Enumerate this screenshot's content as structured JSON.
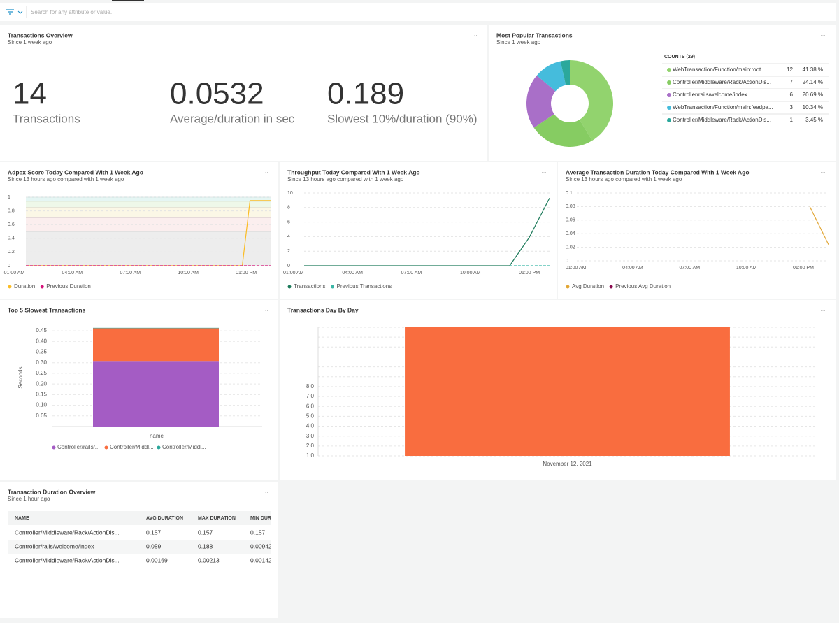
{
  "search_placeholder": "Search for any attribute or value.",
  "menu_label": "...",
  "overview": {
    "title": "Transactions Overview",
    "subtitle": "Since 1 week ago",
    "stats": [
      {
        "value": 14,
        "label": "Transactions"
      },
      {
        "value": 0.0532,
        "label": "Average/duration in sec"
      },
      {
        "value": 0.189,
        "label": "Slowest 10%/duration (90%)"
      }
    ]
  },
  "popular": {
    "title": "Most Popular Transactions",
    "subtitle": "Since 1 week ago",
    "chart_data": {
      "type": "pie",
      "legend_title": "COUNTS (29)",
      "categories": [
        "WebTransaction/Function/main:root",
        "Controller/Middleware/Rack/ActionDis...",
        "Controller/rails/welcome/index",
        "WebTransaction/Function/main:feedpa...",
        "Controller/Middleware/Rack/ActionDis..."
      ],
      "values": [
        12,
        7,
        6,
        3,
        1
      ],
      "shares": [
        "41.38 %",
        "24.14 %",
        "20.69 %",
        "10.34 %",
        "3.45 %"
      ],
      "colors": [
        "#92d36e",
        "#86cc62",
        "#a96fc8",
        "#45bcdc",
        "#2ba89c"
      ]
    }
  },
  "apdex": {
    "title": "Adpex Score Today Compared With 1 Week Ago",
    "subtitle": "Since 13 hours ago compared with 1 week ago",
    "chart_data": {
      "type": "line",
      "x": [
        1.6,
        12.8,
        13.2,
        14.3
      ],
      "xlim": [
        1.6,
        14.3
      ],
      "xticks": [
        {
          "value": 1,
          "label": "01:00 AM"
        },
        {
          "value": 4,
          "label": "04:00 AM"
        },
        {
          "value": 7,
          "label": "07:00 AM"
        },
        {
          "value": 10,
          "label": "10:00 AM"
        },
        {
          "value": 13,
          "label": "01:00 PM"
        }
      ],
      "ylim": [
        0,
        1
      ],
      "yticks": [
        0,
        0.2,
        0.4,
        0.6,
        0.8,
        1
      ],
      "zones": [
        {
          "from": 0,
          "to": 0.5,
          "color": "#ededed"
        },
        {
          "from": 0.5,
          "to": 0.7,
          "color": "#fbeeee"
        },
        {
          "from": 0.7,
          "to": 0.85,
          "color": "#fbf7e6"
        },
        {
          "from": 0.85,
          "to": 0.94,
          "color": "#eef8e9"
        },
        {
          "from": 0.94,
          "to": 1,
          "color": "#e5f6f4"
        }
      ],
      "series": [
        {
          "name": "Duration",
          "color": "#fbbc24",
          "values": [
            0,
            0,
            0.95,
            0.95
          ]
        },
        {
          "name": "Previous Duration",
          "color": "#d6127a",
          "dashed": true,
          "values": [
            0,
            0,
            0,
            0
          ]
        }
      ]
    }
  },
  "throughput": {
    "title": "Throughput Today Compared With 1 Week Ago",
    "subtitle": "Since 13 hours ago compared with 1 week ago",
    "chart_data": {
      "type": "line",
      "x": [
        1.54,
        12,
        13,
        14.03
      ],
      "xlim": [
        1.54,
        14.03
      ],
      "xticks": [
        {
          "value": 1,
          "label": "01:00 AM"
        },
        {
          "value": 4,
          "label": "04:00 AM"
        },
        {
          "value": 7,
          "label": "07:00 AM"
        },
        {
          "value": 10,
          "label": "10:00 AM"
        },
        {
          "value": 13,
          "label": "01:00 PM"
        }
      ],
      "ylim": [
        0,
        10
      ],
      "yticks": [
        0,
        2,
        4,
        6,
        8,
        10
      ],
      "series": [
        {
          "name": "Transactions",
          "color": "#1c7a5a",
          "values": [
            0,
            0,
            3.9,
            9.3
          ]
        },
        {
          "name": "Previous Transactions",
          "color": "#3bb6a6",
          "dashed": true,
          "values": [
            null,
            0,
            0,
            0
          ]
        }
      ]
    }
  },
  "avgdur": {
    "title": "Average Transaction Duration Today Compared With 1 Week Ago",
    "subtitle": "Since 13 hours ago compared with 1 week ago",
    "chart_data": {
      "type": "line",
      "x": [
        13.34,
        14.33
      ],
      "xlim": [
        1.05,
        14.33
      ],
      "xticks": [
        {
          "value": 1,
          "label": "01:00 AM"
        },
        {
          "value": 4,
          "label": "04:00 AM"
        },
        {
          "value": 7,
          "label": "07:00 AM"
        },
        {
          "value": 10,
          "label": "10:00 AM"
        },
        {
          "value": 13,
          "label": "01:00 PM"
        }
      ],
      "ylim": [
        0,
        0.1
      ],
      "yticks": [
        0,
        0.02,
        0.04,
        0.06,
        0.08,
        0.1
      ],
      "series": [
        {
          "name": "Avg Duration",
          "color": "#e2a634",
          "values": [
            0.08,
            0.024
          ]
        },
        {
          "name": "Previous Avg Duration",
          "color": "#8a0a4f",
          "values": [
            null,
            null
          ]
        }
      ]
    }
  },
  "slowest": {
    "title": "Top 5 Slowest Transactions",
    "chart_data": {
      "type": "stacked_bar",
      "categories": [
        null
      ],
      "x_label": "name",
      "y_label": "Seconds",
      "ylim": [
        0,
        0.47
      ],
      "yticks": [
        0.05,
        {
          "value": 0.1,
          "label": "0.10"
        },
        0.15,
        {
          "value": 0.2,
          "label": "0.20"
        },
        0.25,
        {
          "value": 0.3,
          "label": "0.30"
        },
        0.35,
        {
          "value": 0.4,
          "label": "0.40"
        },
        0.45
      ],
      "series": [
        {
          "name": "Controller/rails/...",
          "color": "#a45cc4",
          "values": [
            0.305
          ]
        },
        {
          "name": "Controller/Middl...",
          "color": "#f96d3f",
          "values": [
            0.157
          ]
        },
        {
          "name": "Controller/Middl...",
          "color": "#2ba79b",
          "values": [
            0.002
          ]
        }
      ]
    }
  },
  "daybyday": {
    "title": "Transactions Day By Day",
    "chart_data": {
      "type": "bar",
      "categories": [
        "November 12, 2021"
      ],
      "values": [
        14
      ],
      "color": "#f96d3f",
      "ylim": [
        1,
        14
      ],
      "yticks": [
        {
          "value": 1,
          "label": "1.0"
        },
        {
          "value": 2,
          "label": "2.0"
        },
        {
          "value": 3,
          "label": "3.0"
        },
        {
          "value": 4,
          "label": "4.0"
        },
        {
          "value": 5,
          "label": "5.0"
        },
        {
          "value": 6,
          "label": "6.0"
        },
        {
          "value": 7,
          "label": "7.0"
        },
        {
          "value": 8,
          "label": "8.0"
        }
      ],
      "grid_lines": [
        9,
        10,
        11,
        12,
        13,
        14
      ]
    }
  },
  "table": {
    "title": "Transaction Duration Overview",
    "subtitle": "Since 1 hour ago",
    "columns": [
      "NAME",
      "AVG DURATION",
      "MAX DURATION",
      "MIN DURATION"
    ],
    "rows": [
      [
        "Controller/Middleware/Rack/ActionDis...",
        0.157,
        0.157,
        0.157
      ],
      [
        "Controller/rails/welcome/index",
        0.059,
        0.188,
        0.00942
      ],
      [
        "Controller/Middleware/Rack/ActionDis...",
        0.00169,
        0.00213,
        0.00142
      ]
    ]
  }
}
